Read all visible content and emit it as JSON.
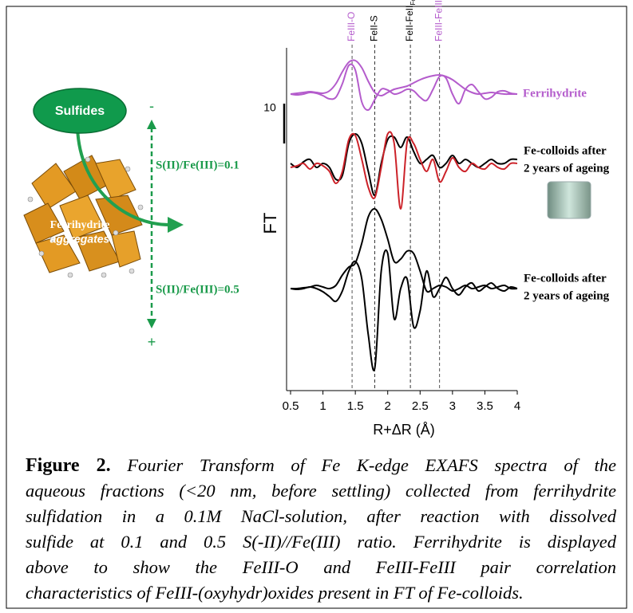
{
  "diagram": {
    "sulfides": "Sulfides",
    "aggregate": [
      "Ferrihydrite",
      "aggregates"
    ],
    "minus": "-",
    "plus": "+",
    "ratios": [
      "S(II)/Fe(III)=0.1",
      "S(II)/Fe(III)=0.5"
    ]
  },
  "chart_data": {
    "type": "line",
    "ylabel": "FT",
    "xlabel": "R+ΔR (Å)",
    "x": [
      0.5,
      0.6,
      0.7,
      0.8,
      0.9,
      1.0,
      1.1,
      1.2,
      1.3,
      1.4,
      1.5,
      1.6,
      1.7,
      1.8,
      1.9,
      2.0,
      2.1,
      2.2,
      2.3,
      2.4,
      2.5,
      2.6,
      2.7,
      2.8,
      2.9,
      3.0,
      3.1,
      3.2,
      3.3,
      3.4,
      3.5,
      3.6,
      3.7,
      3.8,
      3.9,
      4.0
    ],
    "xlim": [
      0.5,
      4
    ],
    "xticks": [
      0.5,
      1,
      1.5,
      2,
      2.5,
      3,
      3.5,
      4
    ],
    "ylim": [
      0,
      90
    ],
    "scale_bar": 10,
    "series": [
      {
        "color": "#b45ccc",
        "values": [
          74.4,
          74.6,
          74.8,
          75,
          74.8,
          74.6,
          75.2,
          77,
          80,
          82.4,
          82.8,
          81,
          77.6,
          74.8,
          74,
          74.8,
          75.6,
          76,
          76.4,
          77.2,
          78,
          78.6,
          79,
          79.2,
          78.8,
          78,
          76.8,
          75.6,
          74.8,
          74.4,
          74.6,
          74.8,
          74.6,
          74.4,
          74.4,
          74.4
        ]
      },
      {
        "color": "#b45ccc",
        "values": [
          74.4,
          74.2,
          74.4,
          74.8,
          74.6,
          74,
          73.2,
          73.6,
          77,
          81.6,
          80.4,
          72.4,
          70.4,
          73,
          75.6,
          75.4,
          74.4,
          74.8,
          75.6,
          75.2,
          73.6,
          72.8,
          75.6,
          78.8,
          78.4,
          74.4,
          72,
          75.6,
          76.8,
          75,
          73.2,
          73.6,
          75,
          75.2,
          74.6,
          74.4
        ]
      },
      {
        "color": "#000000",
        "values": [
          57,
          56,
          57.4,
          58,
          56,
          57,
          56,
          53,
          54,
          62,
          64.4,
          62,
          55,
          49,
          57,
          63,
          63.6,
          61,
          63.6,
          60,
          57,
          58,
          59,
          56,
          57,
          59,
          57,
          58,
          57,
          56,
          57,
          58,
          57,
          57,
          58,
          58
        ]
      },
      {
        "color": "#cc2229",
        "values": [
          56,
          56.4,
          57,
          55.6,
          57,
          56.4,
          55,
          52,
          55,
          63,
          64,
          58,
          51,
          48.4,
          56,
          64.4,
          62,
          45.6,
          62.4,
          62,
          58,
          55,
          58,
          52.4,
          55,
          58.4,
          56,
          55,
          57,
          56,
          55.6,
          57,
          56,
          55.6,
          57,
          57
        ]
      },
      {
        "color": "#000000",
        "values": [
          25.6,
          25.6,
          25.8,
          26,
          26.4,
          26,
          25.6,
          26.4,
          29,
          31,
          32,
          37,
          43.6,
          45.6,
          43,
          38,
          32.4,
          33,
          35,
          34.4,
          30,
          25,
          25.6,
          26.4,
          26,
          25,
          25.6,
          26.4,
          25.6,
          26,
          26.4,
          25.6,
          26,
          26.4,
          25.6,
          25.6
        ]
      },
      {
        "color": "#000000",
        "values": [
          25.6,
          25.4,
          25.6,
          26,
          25.6,
          24.8,
          23.6,
          22.4,
          25,
          30,
          32.4,
          28,
          14,
          5.6,
          30,
          34.4,
          18,
          25.6,
          28,
          16,
          20,
          30,
          23.6,
          25.6,
          28.4,
          25.6,
          24,
          26,
          27,
          25,
          26,
          27,
          25.6,
          25,
          26,
          25.6
        ]
      }
    ],
    "reference_lines": [
      {
        "label": "FeIII-O",
        "x": 1.45,
        "color": "#b45ccc"
      },
      {
        "label": "FeII-S",
        "x": 1.8,
        "color": "#000000"
      },
      {
        "label": "FeII-FeII",
        "subscript": "FeS",
        "x": 2.35,
        "color": "#000000"
      },
      {
        "label": "FeIII-FeIII",
        "x": 2.8,
        "color": "#b45ccc"
      }
    ],
    "curve_labels": [
      {
        "lines": [
          "Ferrihydrite"
        ],
        "color": "#b45ccc"
      },
      {
        "lines": [
          "Fe-colloids after",
          "2 years of ageing"
        ],
        "color": "#000000"
      },
      {
        "lines": [
          "Fe-colloids after",
          "2 years of ageing"
        ],
        "color": "#000000"
      }
    ]
  },
  "caption": {
    "label": "Figure 2.",
    "lines": [
      " Fourier Transform of Fe K-edge EXAFS spectra of the",
      "aqueous fractions (<20 nm, before settling) collected from ferrihydrite",
      "sulfidation in a 0.1M NaCl-solution, after reaction with dissolved",
      "sulfide at 0.1 and 0.5 S(-II)//Fe(III) ratio. Ferrihydrite is displayed",
      "above to show the FeIII-O and FeIII-FeIII pair correlation",
      "characteristics of FeIII-(oxyhydr)oxides present in FT of Fe-colloids."
    ]
  }
}
